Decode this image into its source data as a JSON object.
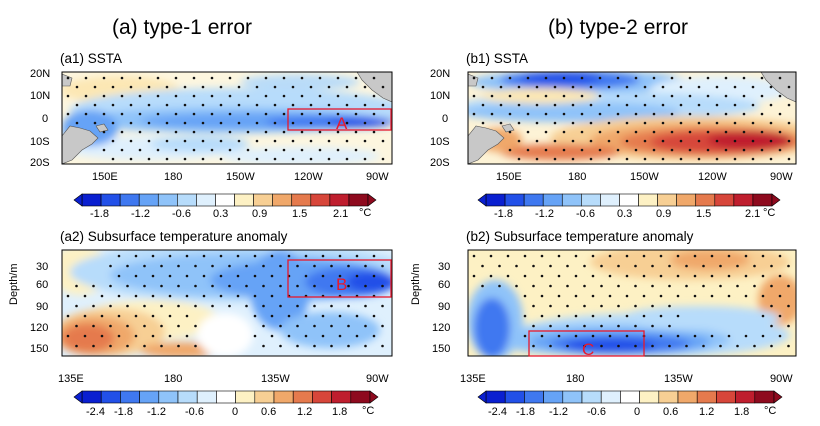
{
  "columns": [
    {
      "title": "(a) type-1 error"
    },
    {
      "title": "(b) type-2 error"
    }
  ],
  "panels": {
    "a1": {
      "title": "(a1) SSTA",
      "y_ticks": [
        "20N",
        "10N",
        "0",
        "10S",
        "20S"
      ],
      "x_ticks": [
        "150E",
        "180",
        "150W",
        "120W",
        "90W"
      ],
      "box_label": "A"
    },
    "b1": {
      "title": "(b1) SSTA",
      "y_ticks": [
        "20N",
        "10N",
        "0",
        "10S",
        "20S"
      ],
      "x_ticks": [
        "150E",
        "180",
        "150W",
        "120W",
        "90W"
      ]
    },
    "a2": {
      "title": "(a2) Subsurface temperature anomaly",
      "y_axis_label": "Depth/m",
      "y_ticks": [
        "30",
        "60",
        "90",
        "120",
        "150"
      ],
      "x_ticks": [
        "135E",
        "180",
        "135W",
        "90W"
      ],
      "box_label": "B"
    },
    "b2": {
      "title": "(b2) Subsurface temperature anomaly",
      "y_axis_label": "Depth/m",
      "y_ticks": [
        "30",
        "60",
        "90",
        "120",
        "150"
      ],
      "x_ticks": [
        "135E",
        "180",
        "135W",
        "90W"
      ],
      "box_label": "C"
    }
  },
  "colorbars": {
    "top": {
      "labels": [
        "-1.8",
        "-1.2",
        "-0.6",
        "0.3",
        "0.9",
        "1.5",
        "2.1"
      ],
      "unit": "°C"
    },
    "bottom": {
      "labels": [
        "-2.4",
        "-1.8",
        "-1.2",
        "-0.6",
        "0",
        "0.6",
        "1.2",
        "1.8"
      ],
      "unit": "°C"
    }
  },
  "colors": {
    "palette": [
      "#0a1fd0",
      "#2250e8",
      "#3f78f0",
      "#66a3f6",
      "#8fc3f9",
      "#b7dcfb",
      "#dff0fd",
      "#ffffff",
      "#fdf1c4",
      "#f7cf94",
      "#f0a86a",
      "#e57a4d",
      "#d7463a",
      "#bf1e2e",
      "#8e0a1e"
    ],
    "box": "#e8182c",
    "land": "#c8c8c8"
  }
}
